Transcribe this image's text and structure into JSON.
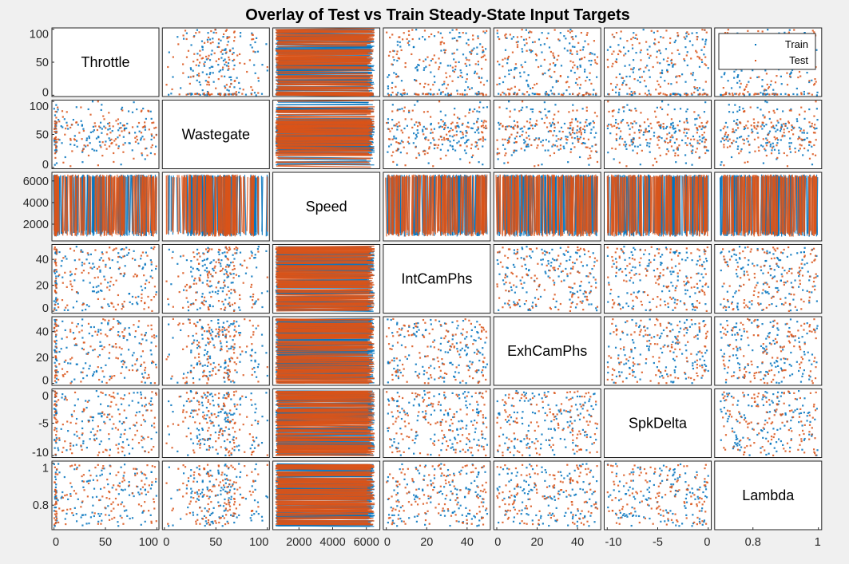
{
  "chart_data": {
    "type": "scatter",
    "layout": "scatter-plot-matrix",
    "title": "Overlay of Test vs Train Steady-State Input Targets",
    "variables": [
      {
        "name": "Throttle",
        "range": [
          -2,
          102
        ],
        "ticks": [
          0,
          50,
          100
        ],
        "tick_labels": [
          "0",
          "50",
          "100"
        ]
      },
      {
        "name": "Wastegate",
        "range": [
          -2,
          102
        ],
        "ticks": [
          0,
          50,
          100
        ],
        "tick_labels": [
          "0",
          "50",
          "100"
        ]
      },
      {
        "name": "Speed",
        "range": [
          450,
          6800
        ],
        "ticks": [
          2000,
          4000,
          6000
        ],
        "tick_labels": [
          "2000",
          "4000",
          "6000"
        ]
      },
      {
        "name": "IntCamPhs",
        "range": [
          -1.5,
          51.5
        ],
        "ticks": [
          0,
          20,
          40
        ],
        "tick_labels": [
          "0",
          "20",
          "40"
        ]
      },
      {
        "name": "ExhCamPhs",
        "range": [
          -1.5,
          51.5
        ],
        "ticks": [
          0,
          20,
          40
        ],
        "tick_labels": [
          "0",
          "20",
          "40"
        ]
      },
      {
        "name": "SpkDelta",
        "range": [
          -10.3,
          0.3
        ],
        "ticks": [
          -10,
          -5,
          0
        ],
        "tick_labels": [
          "-10",
          "-5",
          "0"
        ]
      },
      {
        "name": "Lambda",
        "range": [
          0.683,
          1.01
        ],
        "ticks": [
          0.8,
          1
        ],
        "tick_labels": [
          "0.8",
          "1"
        ]
      }
    ],
    "series": [
      {
        "name": "Train",
        "color": "#0072bd"
      },
      {
        "name": "Test",
        "color": "#d95319"
      }
    ],
    "legend": {
      "placement": "top-right of Throttle-row / Lambda-column panel",
      "entries": [
        "Train",
        "Test"
      ]
    },
    "grid": false,
    "marker": "point"
  }
}
